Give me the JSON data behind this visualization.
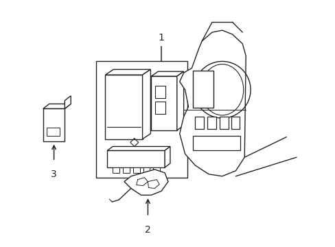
{
  "background_color": "#ffffff",
  "line_color": "#222222",
  "line_width": 1.1,
  "label_fontsize": 9,
  "figsize": [
    4.89,
    3.6
  ],
  "dpi": 100
}
